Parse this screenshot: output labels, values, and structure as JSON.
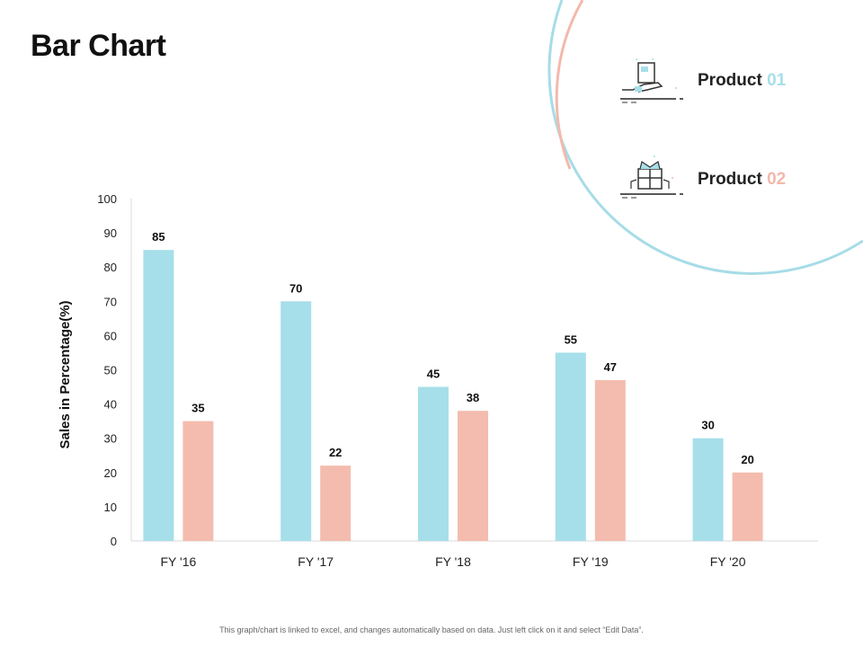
{
  "page": {
    "title": "Bar Chart",
    "footer": "This graph/chart is linked to excel, and changes automatically based on data. Just left click on it and select “Edit Data”."
  },
  "legend": [
    {
      "label": "Product ",
      "num": "01",
      "icon": "hand-cart-icon"
    },
    {
      "label": "Product ",
      "num": "02",
      "icon": "gift-box-icon"
    }
  ],
  "colors": {
    "product1": "#a6dfe9",
    "product2": "#f4bcae",
    "ring1": "#a6dce7",
    "ring2": "#f3b9ab"
  },
  "chart_data": {
    "type": "bar",
    "title": "",
    "xlabel": "",
    "ylabel": "Sales in Percentage(%)",
    "categories": [
      "FY '16",
      "FY '17",
      "FY '18",
      "FY '19",
      "FY '20"
    ],
    "ylim": [
      0,
      100
    ],
    "yticks": [
      0,
      10,
      20,
      30,
      40,
      50,
      60,
      70,
      80,
      90,
      100
    ],
    "series": [
      {
        "name": "Product 01",
        "values": [
          85,
          70,
          45,
          55,
          30
        ]
      },
      {
        "name": "Product 02",
        "values": [
          35,
          22,
          38,
          47,
          20
        ]
      }
    ],
    "grid": false,
    "legend": "top-right"
  }
}
